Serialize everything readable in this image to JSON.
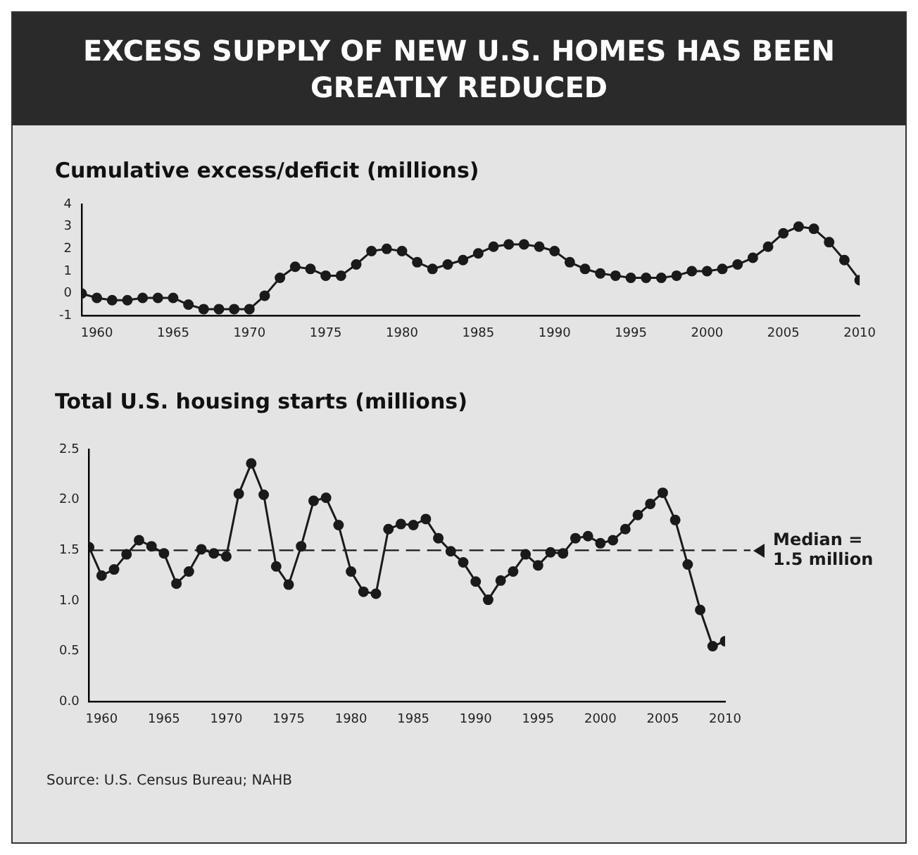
{
  "chart_data": [
    {
      "type": "line",
      "title": "EXCESS SUPPLY OF NEW U.S. HOMES HAS BEEN GREATLY REDUCED",
      "subtitle": "Cumulative excess/deficit (millions)",
      "x": [
        1959,
        1960,
        1961,
        1962,
        1963,
        1964,
        1965,
        1966,
        1967,
        1968,
        1969,
        1970,
        1971,
        1972,
        1973,
        1974,
        1975,
        1976,
        1977,
        1978,
        1979,
        1980,
        1981,
        1982,
        1983,
        1984,
        1985,
        1986,
        1987,
        1988,
        1989,
        1990,
        1991,
        1992,
        1993,
        1994,
        1995,
        1996,
        1997,
        1998,
        1999,
        2000,
        2001,
        2002,
        2003,
        2004,
        2005,
        2006,
        2007,
        2008,
        2009,
        2010
      ],
      "series": [
        {
          "color": "#1a1a1a",
          "values": [
            0,
            -0.2,
            -0.3,
            -0.3,
            -0.2,
            -0.2,
            -0.2,
            -0.5,
            -0.7,
            -0.7,
            -0.7,
            -0.7,
            -0.1,
            0.7,
            1.2,
            1.1,
            0.8,
            0.8,
            1.3,
            1.9,
            2.0,
            1.9,
            1.4,
            1.1,
            1.3,
            1.5,
            1.8,
            2.1,
            2.2,
            2.2,
            2.1,
            1.9,
            1.4,
            1.1,
            0.9,
            0.8,
            0.7,
            0.7,
            0.7,
            0.8,
            1.0,
            1.0,
            1.1,
            1.3,
            1.6,
            2.1,
            2.7,
            3.0,
            2.9,
            2.3,
            1.5,
            0.6
          ]
        }
      ],
      "xlim": [
        1959,
        2010
      ],
      "xticks": [
        1960,
        1965,
        1970,
        1975,
        1980,
        1985,
        1990,
        1995,
        2000,
        2005,
        2010
      ],
      "ylim": [
        -1,
        4
      ],
      "yticks": [
        -1,
        0,
        1,
        2,
        3,
        4
      ],
      "grid": false,
      "legend": false,
      "marker": "circle",
      "line_style": "solid"
    },
    {
      "type": "line",
      "title": "Total U.S. housing starts (millions)",
      "x": [
        1959,
        1960,
        1961,
        1962,
        1963,
        1964,
        1965,
        1966,
        1967,
        1968,
        1969,
        1970,
        1971,
        1972,
        1973,
        1974,
        1975,
        1976,
        1977,
        1978,
        1979,
        1980,
        1981,
        1982,
        1983,
        1984,
        1985,
        1986,
        1987,
        1988,
        1989,
        1990,
        1991,
        1992,
        1993,
        1994,
        1995,
        1996,
        1997,
        1998,
        1999,
        2000,
        2001,
        2002,
        2003,
        2004,
        2005,
        2006,
        2007,
        2008,
        2009,
        2010
      ],
      "series": [
        {
          "color": "#1a1a1a",
          "values": [
            1.53,
            1.25,
            1.31,
            1.46,
            1.6,
            1.54,
            1.47,
            1.17,
            1.29,
            1.51,
            1.47,
            1.44,
            2.06,
            2.36,
            2.05,
            1.34,
            1.16,
            1.54,
            1.99,
            2.02,
            1.75,
            1.29,
            1.09,
            1.07,
            1.71,
            1.76,
            1.75,
            1.81,
            1.62,
            1.49,
            1.38,
            1.19,
            1.01,
            1.2,
            1.29,
            1.46,
            1.35,
            1.48,
            1.47,
            1.62,
            1.64,
            1.57,
            1.6,
            1.71,
            1.85,
            1.96,
            2.07,
            1.8,
            1.36,
            0.91,
            0.55,
            0.6
          ]
        }
      ],
      "xlim": [
        1959,
        2010
      ],
      "xticks": [
        1960,
        1965,
        1970,
        1975,
        1980,
        1985,
        1990,
        1995,
        2000,
        2005,
        2010
      ],
      "ylim": [
        0,
        2.5
      ],
      "yticks": [
        {
          "value": 0,
          "label": "0.0"
        },
        {
          "value": 0.5,
          "label": "0.5"
        },
        {
          "value": 1,
          "label": "1.0"
        },
        {
          "value": 1.5,
          "label": "1.5"
        },
        {
          "value": 2,
          "label": "2.0"
        },
        {
          "value": 2.5,
          "label": "2.5"
        }
      ],
      "ref_lines": [
        {
          "axis": "y",
          "value": 1.5,
          "label": "Median = 1.5 million",
          "line_style": "dashed",
          "color": "#1a1a1a"
        }
      ],
      "annotations": [
        "Source: U.S. Census Bureau; NAHB"
      ],
      "grid": false,
      "legend": false,
      "marker": "circle",
      "line_style": "solid"
    }
  ]
}
